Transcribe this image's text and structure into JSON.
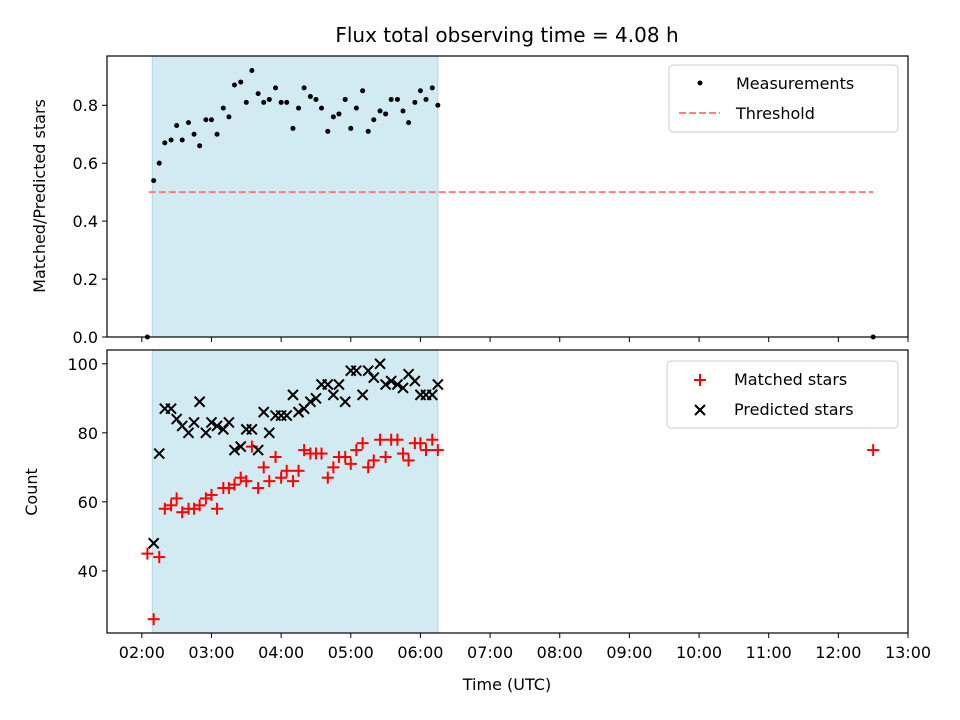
{
  "title": "Flux total observing time = 4.08 h",
  "colors": {
    "shade": "#add8e6",
    "threshold": "#ff7f7f",
    "matched": "#ff0000",
    "predicted": "#000000",
    "measurement": "#000000"
  },
  "chart_data": [
    {
      "type": "scatter",
      "ylabel": "Matched/Predicted stars",
      "xlim": [
        1.5,
        13.0
      ],
      "ylim": [
        0,
        0.97
      ],
      "yticks": [
        0.0,
        0.2,
        0.4,
        0.6,
        0.8
      ],
      "ytick_labels": [
        "0.0",
        "0.2",
        "0.4",
        "0.6",
        "0.8"
      ],
      "shaded_span": [
        2.15,
        6.25
      ],
      "legend": {
        "placement": "top-right",
        "entries": [
          "Measurements",
          "Threshold"
        ]
      },
      "threshold": {
        "name": "Threshold",
        "value": 0.5,
        "x": [
          2.1,
          12.5
        ]
      },
      "series": [
        {
          "name": "Measurements",
          "marker": "dot",
          "points": [
            [
              2.08,
              0.0
            ],
            [
              2.17,
              0.54
            ],
            [
              2.25,
              0.6
            ],
            [
              2.33,
              0.67
            ],
            [
              2.42,
              0.68
            ],
            [
              2.5,
              0.73
            ],
            [
              2.58,
              0.68
            ],
            [
              2.67,
              0.74
            ],
            [
              2.75,
              0.7
            ],
            [
              2.83,
              0.66
            ],
            [
              2.92,
              0.75
            ],
            [
              3.0,
              0.75
            ],
            [
              3.08,
              0.7
            ],
            [
              3.17,
              0.79
            ],
            [
              3.25,
              0.76
            ],
            [
              3.33,
              0.87
            ],
            [
              3.42,
              0.88
            ],
            [
              3.5,
              0.81
            ],
            [
              3.58,
              0.92
            ],
            [
              3.67,
              0.84
            ],
            [
              3.75,
              0.81
            ],
            [
              3.83,
              0.82
            ],
            [
              3.92,
              0.86
            ],
            [
              4.0,
              0.81
            ],
            [
              4.08,
              0.81
            ],
            [
              4.17,
              0.72
            ],
            [
              4.25,
              0.79
            ],
            [
              4.33,
              0.86
            ],
            [
              4.42,
              0.83
            ],
            [
              4.5,
              0.82
            ],
            [
              4.58,
              0.79
            ],
            [
              4.67,
              0.71
            ],
            [
              4.75,
              0.76
            ],
            [
              4.83,
              0.77
            ],
            [
              4.92,
              0.82
            ],
            [
              5.0,
              0.72
            ],
            [
              5.08,
              0.79
            ],
            [
              5.17,
              0.85
            ],
            [
              5.25,
              0.71
            ],
            [
              5.33,
              0.75
            ],
            [
              5.42,
              0.78
            ],
            [
              5.5,
              0.77
            ],
            [
              5.58,
              0.82
            ],
            [
              5.67,
              0.82
            ],
            [
              5.75,
              0.78
            ],
            [
              5.83,
              0.74
            ],
            [
              5.92,
              0.81
            ],
            [
              6.0,
              0.85
            ],
            [
              6.08,
              0.82
            ],
            [
              6.17,
              0.86
            ],
            [
              6.25,
              0.8
            ],
            [
              12.5,
              0.0
            ]
          ]
        }
      ]
    },
    {
      "type": "scatter",
      "xlabel": "Time (UTC)",
      "ylabel": "Count",
      "xlim": [
        1.5,
        13.0
      ],
      "ylim": [
        22,
        104
      ],
      "yticks": [
        40,
        60,
        80,
        100
      ],
      "xticks": [
        2,
        3,
        4,
        5,
        6,
        7,
        8,
        9,
        10,
        11,
        12,
        13
      ],
      "xtick_labels": [
        "02:00",
        "03:00",
        "04:00",
        "05:00",
        "06:00",
        "07:00",
        "08:00",
        "09:00",
        "10:00",
        "11:00",
        "12:00",
        "13:00"
      ],
      "shaded_span": [
        2.15,
        6.25
      ],
      "legend": {
        "placement": "top-right",
        "entries": [
          "Matched stars",
          "Predicted stars"
        ]
      },
      "series": [
        {
          "name": "Matched stars",
          "marker": "plus",
          "points": [
            [
              2.08,
              45
            ],
            [
              2.17,
              26
            ],
            [
              2.25,
              44
            ],
            [
              2.33,
              58
            ],
            [
              2.42,
              59
            ],
            [
              2.5,
              61
            ],
            [
              2.58,
              57
            ],
            [
              2.67,
              58
            ],
            [
              2.75,
              58
            ],
            [
              2.83,
              59
            ],
            [
              2.92,
              61
            ],
            [
              3.0,
              62
            ],
            [
              3.08,
              58
            ],
            [
              3.17,
              64
            ],
            [
              3.25,
              64
            ],
            [
              3.33,
              65
            ],
            [
              3.42,
              67
            ],
            [
              3.5,
              66
            ],
            [
              3.58,
              76
            ],
            [
              3.67,
              64
            ],
            [
              3.75,
              70
            ],
            [
              3.83,
              66
            ],
            [
              3.92,
              73
            ],
            [
              4.0,
              67
            ],
            [
              4.08,
              69
            ],
            [
              4.17,
              66
            ],
            [
              4.25,
              69
            ],
            [
              4.33,
              75
            ],
            [
              4.42,
              74
            ],
            [
              4.5,
              74
            ],
            [
              4.58,
              74
            ],
            [
              4.67,
              67
            ],
            [
              4.75,
              70
            ],
            [
              4.83,
              73
            ],
            [
              4.92,
              73
            ],
            [
              5.0,
              71
            ],
            [
              5.08,
              75
            ],
            [
              5.17,
              77
            ],
            [
              5.25,
              70
            ],
            [
              5.33,
              72
            ],
            [
              5.42,
              78
            ],
            [
              5.5,
              73
            ],
            [
              5.58,
              78
            ],
            [
              5.67,
              78
            ],
            [
              5.75,
              74
            ],
            [
              5.83,
              72
            ],
            [
              5.92,
              77
            ],
            [
              6.0,
              77
            ],
            [
              6.08,
              75
            ],
            [
              6.17,
              78
            ],
            [
              6.25,
              75
            ],
            [
              12.5,
              75
            ]
          ]
        },
        {
          "name": "Predicted stars",
          "marker": "x",
          "points": [
            [
              2.17,
              48
            ],
            [
              2.25,
              74
            ],
            [
              2.33,
              87
            ],
            [
              2.42,
              87
            ],
            [
              2.5,
              84
            ],
            [
              2.58,
              82
            ],
            [
              2.67,
              80
            ],
            [
              2.75,
              83
            ],
            [
              2.83,
              89
            ],
            [
              2.92,
              80
            ],
            [
              3.0,
              83
            ],
            [
              3.08,
              82
            ],
            [
              3.17,
              81
            ],
            [
              3.25,
              83
            ],
            [
              3.33,
              75
            ],
            [
              3.42,
              76
            ],
            [
              3.5,
              81
            ],
            [
              3.58,
              81
            ],
            [
              3.67,
              75
            ],
            [
              3.75,
              86
            ],
            [
              3.83,
              80
            ],
            [
              3.92,
              85
            ],
            [
              4.0,
              85
            ],
            [
              4.08,
              85
            ],
            [
              4.17,
              91
            ],
            [
              4.25,
              86
            ],
            [
              4.33,
              87
            ],
            [
              4.42,
              89
            ],
            [
              4.5,
              90
            ],
            [
              4.58,
              94
            ],
            [
              4.67,
              94
            ],
            [
              4.75,
              91
            ],
            [
              4.83,
              94
            ],
            [
              4.92,
              89
            ],
            [
              5.0,
              98
            ],
            [
              5.08,
              98
            ],
            [
              5.17,
              91
            ],
            [
              5.25,
              98
            ],
            [
              5.33,
              96
            ],
            [
              5.42,
              100
            ],
            [
              5.5,
              94
            ],
            [
              5.58,
              95
            ],
            [
              5.67,
              94
            ],
            [
              5.75,
              93
            ],
            [
              5.83,
              97
            ],
            [
              5.92,
              95
            ],
            [
              6.0,
              91
            ],
            [
              6.08,
              91
            ],
            [
              6.17,
              91
            ],
            [
              6.25,
              94
            ]
          ]
        }
      ]
    }
  ]
}
